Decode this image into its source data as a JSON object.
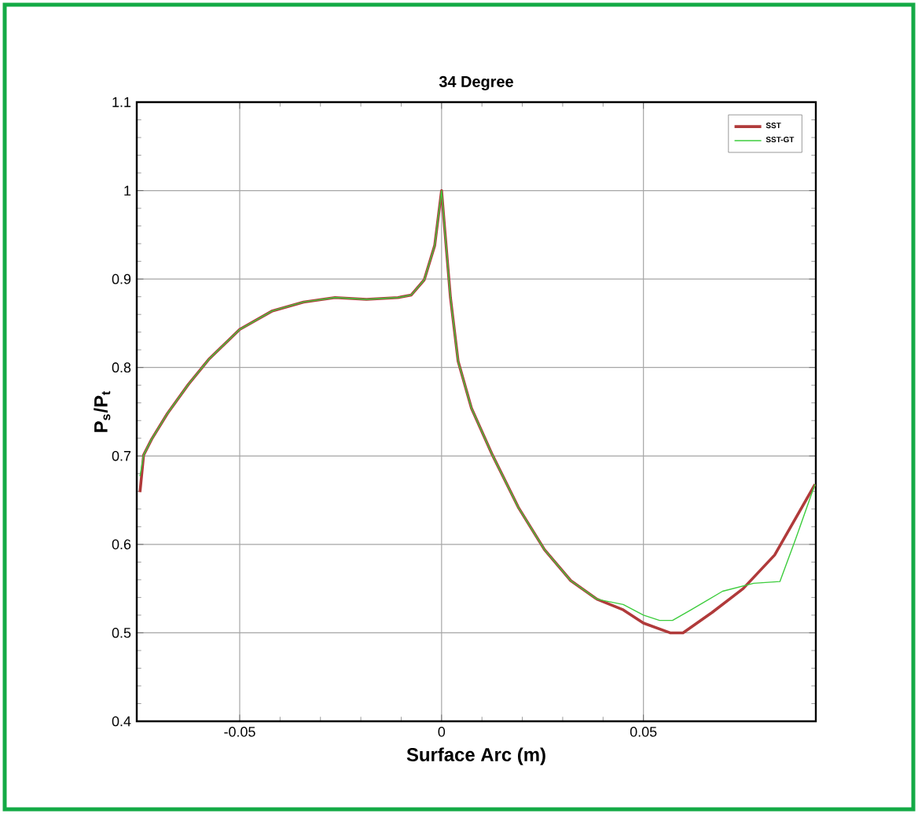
{
  "chart_data": {
    "type": "line",
    "title": "34 Degree",
    "xlabel": "Surface Arc (m)",
    "ylabel": "P$_{s}$/P$_{t}$",
    "xlim": [
      -0.0755,
      0.0927
    ],
    "ylim": [
      0.4,
      1.1
    ],
    "xticks": [
      -0.05,
      0,
      0.05
    ],
    "yticks": [
      0.4,
      0.5,
      0.6,
      0.7,
      0.8,
      0.9,
      1,
      1.1
    ],
    "grid": true,
    "legend": "top right",
    "marker": "none",
    "line_style": "solid",
    "series": [
      {
        "name": "SST",
        "color": "#b03a3a",
        "x": [
          -0.0747,
          -0.0738,
          -0.0718,
          -0.0679,
          -0.0627,
          -0.0575,
          -0.05,
          -0.0419,
          -0.0342,
          -0.0264,
          -0.0186,
          -0.0108,
          -0.0075,
          -0.0043,
          -0.0017,
          0,
          0.0009,
          0.0022,
          0.0041,
          0.0074,
          0.0126,
          0.019,
          0.0255,
          0.032,
          0.0385,
          0.045,
          0.05,
          0.0566,
          0.0598,
          0.067,
          0.0747,
          0.0825,
          0.0925
        ],
        "values": [
          0.659,
          0.701,
          0.719,
          0.748,
          0.781,
          0.81,
          0.843,
          0.864,
          0.874,
          0.879,
          0.877,
          0.879,
          0.882,
          0.899,
          0.938,
          1.0,
          0.95,
          0.879,
          0.807,
          0.754,
          0.701,
          0.642,
          0.594,
          0.559,
          0.538,
          0.526,
          0.511,
          0.5,
          0.5,
          0.523,
          0.55,
          0.588,
          0.668
        ]
      },
      {
        "name": "SST-GT",
        "color": "#3ccc3c",
        "x": [
          -0.0747,
          -0.0738,
          -0.0718,
          -0.0679,
          -0.0627,
          -0.0575,
          -0.05,
          -0.0419,
          -0.0342,
          -0.0264,
          -0.0186,
          -0.0108,
          -0.0075,
          -0.0043,
          -0.0017,
          0,
          0.0009,
          0.0022,
          0.0041,
          0.0074,
          0.0126,
          0.019,
          0.0255,
          0.032,
          0.0385,
          0.045,
          0.05,
          0.054,
          0.0572,
          0.0618,
          0.0696,
          0.0773,
          0.0838,
          0.0877,
          0.0925
        ],
        "values": [
          0.677,
          0.701,
          0.719,
          0.748,
          0.781,
          0.81,
          0.843,
          0.864,
          0.874,
          0.879,
          0.877,
          0.879,
          0.882,
          0.899,
          0.938,
          1.0,
          0.95,
          0.879,
          0.807,
          0.754,
          0.701,
          0.642,
          0.594,
          0.559,
          0.538,
          0.532,
          0.52,
          0.514,
          0.514,
          0.526,
          0.547,
          0.556,
          0.558,
          0.606,
          0.668
        ]
      }
    ]
  }
}
